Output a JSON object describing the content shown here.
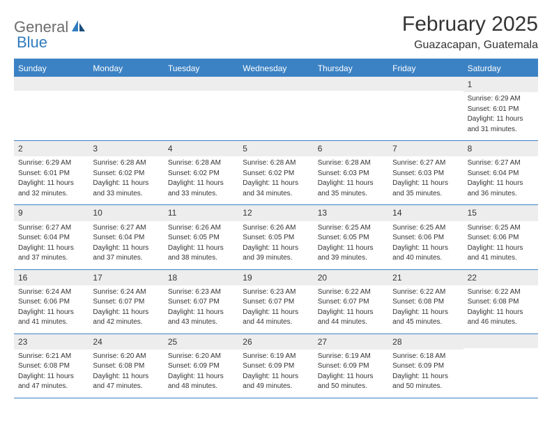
{
  "logo": {
    "part1": "General",
    "part2": "Blue"
  },
  "title": "February 2025",
  "location": "Guazacapan, Guatemala",
  "colors": {
    "header_bg": "#3b82c4",
    "header_text": "#ffffff",
    "daynum_bg": "#ededed",
    "text": "#333333",
    "logo_gray": "#6c6c6c",
    "logo_blue": "#2f7bbf"
  },
  "daynames": [
    "Sunday",
    "Monday",
    "Tuesday",
    "Wednesday",
    "Thursday",
    "Friday",
    "Saturday"
  ],
  "weeks": [
    [
      null,
      null,
      null,
      null,
      null,
      null,
      {
        "n": "1",
        "sr": "Sunrise: 6:29 AM",
        "ss": "Sunset: 6:01 PM",
        "d1": "Daylight: 11 hours",
        "d2": "and 31 minutes."
      }
    ],
    [
      {
        "n": "2",
        "sr": "Sunrise: 6:29 AM",
        "ss": "Sunset: 6:01 PM",
        "d1": "Daylight: 11 hours",
        "d2": "and 32 minutes."
      },
      {
        "n": "3",
        "sr": "Sunrise: 6:28 AM",
        "ss": "Sunset: 6:02 PM",
        "d1": "Daylight: 11 hours",
        "d2": "and 33 minutes."
      },
      {
        "n": "4",
        "sr": "Sunrise: 6:28 AM",
        "ss": "Sunset: 6:02 PM",
        "d1": "Daylight: 11 hours",
        "d2": "and 33 minutes."
      },
      {
        "n": "5",
        "sr": "Sunrise: 6:28 AM",
        "ss": "Sunset: 6:02 PM",
        "d1": "Daylight: 11 hours",
        "d2": "and 34 minutes."
      },
      {
        "n": "6",
        "sr": "Sunrise: 6:28 AM",
        "ss": "Sunset: 6:03 PM",
        "d1": "Daylight: 11 hours",
        "d2": "and 35 minutes."
      },
      {
        "n": "7",
        "sr": "Sunrise: 6:27 AM",
        "ss": "Sunset: 6:03 PM",
        "d1": "Daylight: 11 hours",
        "d2": "and 35 minutes."
      },
      {
        "n": "8",
        "sr": "Sunrise: 6:27 AM",
        "ss": "Sunset: 6:04 PM",
        "d1": "Daylight: 11 hours",
        "d2": "and 36 minutes."
      }
    ],
    [
      {
        "n": "9",
        "sr": "Sunrise: 6:27 AM",
        "ss": "Sunset: 6:04 PM",
        "d1": "Daylight: 11 hours",
        "d2": "and 37 minutes."
      },
      {
        "n": "10",
        "sr": "Sunrise: 6:27 AM",
        "ss": "Sunset: 6:04 PM",
        "d1": "Daylight: 11 hours",
        "d2": "and 37 minutes."
      },
      {
        "n": "11",
        "sr": "Sunrise: 6:26 AM",
        "ss": "Sunset: 6:05 PM",
        "d1": "Daylight: 11 hours",
        "d2": "and 38 minutes."
      },
      {
        "n": "12",
        "sr": "Sunrise: 6:26 AM",
        "ss": "Sunset: 6:05 PM",
        "d1": "Daylight: 11 hours",
        "d2": "and 39 minutes."
      },
      {
        "n": "13",
        "sr": "Sunrise: 6:25 AM",
        "ss": "Sunset: 6:05 PM",
        "d1": "Daylight: 11 hours",
        "d2": "and 39 minutes."
      },
      {
        "n": "14",
        "sr": "Sunrise: 6:25 AM",
        "ss": "Sunset: 6:06 PM",
        "d1": "Daylight: 11 hours",
        "d2": "and 40 minutes."
      },
      {
        "n": "15",
        "sr": "Sunrise: 6:25 AM",
        "ss": "Sunset: 6:06 PM",
        "d1": "Daylight: 11 hours",
        "d2": "and 41 minutes."
      }
    ],
    [
      {
        "n": "16",
        "sr": "Sunrise: 6:24 AM",
        "ss": "Sunset: 6:06 PM",
        "d1": "Daylight: 11 hours",
        "d2": "and 41 minutes."
      },
      {
        "n": "17",
        "sr": "Sunrise: 6:24 AM",
        "ss": "Sunset: 6:07 PM",
        "d1": "Daylight: 11 hours",
        "d2": "and 42 minutes."
      },
      {
        "n": "18",
        "sr": "Sunrise: 6:23 AM",
        "ss": "Sunset: 6:07 PM",
        "d1": "Daylight: 11 hours",
        "d2": "and 43 minutes."
      },
      {
        "n": "19",
        "sr": "Sunrise: 6:23 AM",
        "ss": "Sunset: 6:07 PM",
        "d1": "Daylight: 11 hours",
        "d2": "and 44 minutes."
      },
      {
        "n": "20",
        "sr": "Sunrise: 6:22 AM",
        "ss": "Sunset: 6:07 PM",
        "d1": "Daylight: 11 hours",
        "d2": "and 44 minutes."
      },
      {
        "n": "21",
        "sr": "Sunrise: 6:22 AM",
        "ss": "Sunset: 6:08 PM",
        "d1": "Daylight: 11 hours",
        "d2": "and 45 minutes."
      },
      {
        "n": "22",
        "sr": "Sunrise: 6:22 AM",
        "ss": "Sunset: 6:08 PM",
        "d1": "Daylight: 11 hours",
        "d2": "and 46 minutes."
      }
    ],
    [
      {
        "n": "23",
        "sr": "Sunrise: 6:21 AM",
        "ss": "Sunset: 6:08 PM",
        "d1": "Daylight: 11 hours",
        "d2": "and 47 minutes."
      },
      {
        "n": "24",
        "sr": "Sunrise: 6:20 AM",
        "ss": "Sunset: 6:08 PM",
        "d1": "Daylight: 11 hours",
        "d2": "and 47 minutes."
      },
      {
        "n": "25",
        "sr": "Sunrise: 6:20 AM",
        "ss": "Sunset: 6:09 PM",
        "d1": "Daylight: 11 hours",
        "d2": "and 48 minutes."
      },
      {
        "n": "26",
        "sr": "Sunrise: 6:19 AM",
        "ss": "Sunset: 6:09 PM",
        "d1": "Daylight: 11 hours",
        "d2": "and 49 minutes."
      },
      {
        "n": "27",
        "sr": "Sunrise: 6:19 AM",
        "ss": "Sunset: 6:09 PM",
        "d1": "Daylight: 11 hours",
        "d2": "and 50 minutes."
      },
      {
        "n": "28",
        "sr": "Sunrise: 6:18 AM",
        "ss": "Sunset: 6:09 PM",
        "d1": "Daylight: 11 hours",
        "d2": "and 50 minutes."
      },
      null
    ]
  ]
}
